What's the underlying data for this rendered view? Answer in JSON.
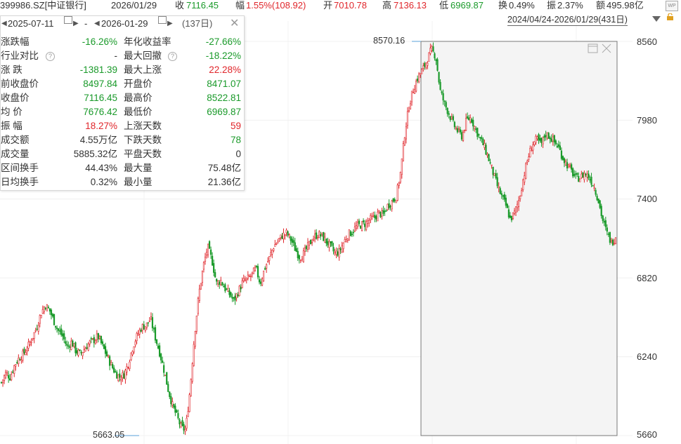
{
  "header": {
    "code_name": "399986.SZ[中证银行]",
    "date": "2026/01/29",
    "close_label": "收",
    "close_value": "7116.45",
    "change_label": "幅",
    "change_value": "1.55%(108.92)",
    "open_label": "开",
    "open_value": "7010.78",
    "high_label": "高",
    "high_value": "7136.13",
    "low_label": "低",
    "low_value": "6969.87",
    "turnover_label": "换",
    "turnover_value": "0.49%",
    "amplitude_label": "振",
    "amplitude_value": "2.37%",
    "amount_label": "额",
    "amount_value": "495.98亿",
    "range_text": "2024/04/24-2026/01/29(431日)"
  },
  "panel": {
    "start_date": "2025-07-11",
    "sep": "-",
    "end_date": "2026-01-29",
    "days": "(137日)",
    "rows": [
      {
        "l1": "涨跌幅",
        "v1": "-16.26%",
        "c1": "green",
        "l2": "年化收益率",
        "v2": "-27.66%",
        "c2": "green"
      },
      {
        "l1": "行业对比",
        "v1": "-",
        "c1": "dark",
        "l2": "最大回撤",
        "v2": "-18.22%",
        "c2": "green"
      },
      {
        "l1": "涨  跌",
        "v1": "-1381.39",
        "c1": "green",
        "l2": "最大上涨",
        "v2": "22.28%",
        "c2": "red"
      },
      {
        "l1": "前收盘价",
        "v1": "8497.84",
        "c1": "green",
        "l2": "开盘价",
        "v2": "8471.07",
        "c2": "green"
      },
      {
        "l1": "收盘价",
        "v1": "7116.45",
        "c1": "green",
        "l2": "最高价",
        "v2": "8522.81",
        "c2": "green"
      },
      {
        "l1": "均  价",
        "v1": "7676.42",
        "c1": "green",
        "l2": "最低价",
        "v2": "6969.87",
        "c2": "green"
      },
      {
        "l1": "振  幅",
        "v1": "18.27%",
        "c1": "red",
        "l2": "上涨天数",
        "v2": "59",
        "c2": "red"
      },
      {
        "l1": "成交额",
        "v1": "4.55万亿",
        "c1": "dark",
        "l2": "下跌天数",
        "v2": "78",
        "c2": "green"
      },
      {
        "l1": "成交量",
        "v1": "5885.32亿",
        "c1": "dark",
        "l2": "平盘天数",
        "v2": "0",
        "c2": "dark"
      },
      {
        "l1": "区间换手",
        "v1": "44.43%",
        "c1": "dark",
        "l2": "最大量",
        "v2": "75.48亿",
        "c2": "dark"
      },
      {
        "l1": "日均换手",
        "v1": "0.32%",
        "c1": "dark",
        "l2": "最小量",
        "v2": "21.36亿",
        "c2": "dark"
      }
    ]
  },
  "colors": {
    "up": "#e0262b",
    "down": "#1a9a2a"
  },
  "chart_data": {
    "type": "candlestick",
    "y_ticks": [
      "8560",
      "7980",
      "7400",
      "6820",
      "6240",
      "5660"
    ],
    "ylim": [
      5660,
      8560
    ],
    "max_label": "8570.16",
    "min_label": "5663.05",
    "closes": [
      6050,
      6120,
      6090,
      6180,
      6230,
      6260,
      6310,
      6380,
      6450,
      6560,
      6620,
      6580,
      6500,
      6430,
      6390,
      6310,
      6350,
      6280,
      6260,
      6300,
      6340,
      6360,
      6390,
      6320,
      6250,
      6180,
      6120,
      6090,
      6110,
      6200,
      6320,
      6400,
      6460,
      6470,
      6520,
      6390,
      6280,
      6150,
      6000,
      5880,
      5800,
      5720,
      5700,
      6000,
      6400,
      6700,
      6900,
      7050,
      6950,
      6780,
      6800,
      6740,
      6700,
      6650,
      6720,
      6790,
      6810,
      6840,
      6890,
      6780,
      6890,
      6960,
      7050,
      7090,
      7130,
      7150,
      7100,
      7030,
      6970,
      7000,
      7060,
      7110,
      7140,
      7130,
      7090,
      7050,
      7000,
      7010,
      7080,
      7140,
      7160,
      7200,
      7210,
      7220,
      7250,
      7260,
      7300,
      7280,
      7350,
      7380,
      7420,
      7600,
      7900,
      8100,
      8220,
      8300,
      8350,
      8420,
      8500,
      8450,
      8200,
      8100,
      8030,
      7950,
      7900,
      7860,
      7980,
      8000,
      7920,
      7850,
      7790,
      7700,
      7600,
      7500,
      7420,
      7350,
      7250,
      7300,
      7400,
      7560,
      7700,
      7800,
      7840,
      7800,
      7880,
      7860,
      7820,
      7780,
      7700,
      7650,
      7600,
      7550,
      7560,
      7590,
      7560,
      7500,
      7400,
      7250,
      7150,
      7080,
      7116
    ]
  }
}
